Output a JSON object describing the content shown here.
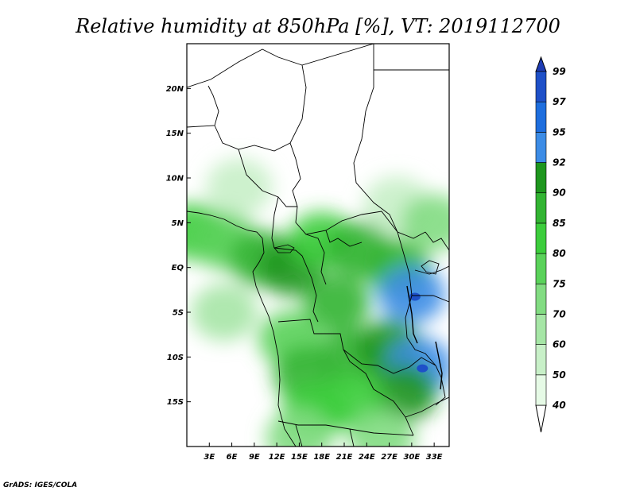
{
  "chart_data": {
    "type": "heatmap",
    "title": "Relative humidity at 850hPa [%], VT: 2019112700",
    "credit": "GrADS: IGES/COLA",
    "x_ticks": [
      "3E",
      "6E",
      "9E",
      "12E",
      "15E",
      "18E",
      "21E",
      "24E",
      "27E",
      "30E",
      "33E"
    ],
    "x_tick_values": [
      3,
      6,
      9,
      12,
      15,
      18,
      21,
      24,
      27,
      30,
      33
    ],
    "y_ticks": [
      "20N",
      "15N",
      "10N",
      "5N",
      "EQ",
      "5S",
      "10S",
      "15S"
    ],
    "y_tick_values": [
      20,
      15,
      10,
      5,
      0,
      -5,
      -10,
      -15
    ],
    "xlim": [
      0,
      35
    ],
    "ylim": [
      -20,
      25
    ],
    "colorbar": {
      "levels": [
        "40",
        "50",
        "60",
        "70",
        "75",
        "80",
        "85",
        "90",
        "92",
        "95",
        "97",
        "99"
      ],
      "colors": [
        "#ffffff",
        "#e6fae6",
        "#c8f0c8",
        "#a6e6a6",
        "#82dc82",
        "#5ad25a",
        "#3ccd3c",
        "#32b432",
        "#1e961e",
        "#3c8ce6",
        "#1e6ede",
        "#1e50c8",
        "#1e3cb4"
      ]
    },
    "fields": [
      {
        "lon": 1,
        "lat": 4,
        "value": 82
      },
      {
        "lon": 5,
        "lat": 3,
        "value": 78
      },
      {
        "lon": 10,
        "lat": 1,
        "value": 85
      },
      {
        "lon": 14,
        "lat": 0,
        "value": 90
      },
      {
        "lon": 18,
        "lat": 3,
        "value": 82
      },
      {
        "lon": 23,
        "lat": 2,
        "value": 85
      },
      {
        "lon": 28,
        "lat": 0,
        "value": 88
      },
      {
        "lon": 30,
        "lat": -3,
        "value": 92
      },
      {
        "lon": 20,
        "lat": -4,
        "value": 85
      },
      {
        "lon": 14,
        "lat": -8,
        "value": 78
      },
      {
        "lon": 16,
        "lat": -12,
        "value": 88
      },
      {
        "lon": 22,
        "lat": -10,
        "value": 85
      },
      {
        "lon": 27,
        "lat": -9,
        "value": 90
      },
      {
        "lon": 31,
        "lat": -11,
        "value": 93
      },
      {
        "lon": 29,
        "lat": -14,
        "value": 90
      },
      {
        "lon": 22,
        "lat": -15,
        "value": 82
      },
      {
        "lon": 17,
        "lat": -16,
        "value": 84
      },
      {
        "lon": 5,
        "lat": -5,
        "value": 65
      },
      {
        "lon": 28,
        "lat": 7,
        "value": 55
      },
      {
        "lon": 33,
        "lat": 5,
        "value": 72
      },
      {
        "lon": 7,
        "lat": 9,
        "value": 50
      },
      {
        "lon": 26,
        "lat": -19,
        "value": 70
      },
      {
        "lon": 15,
        "lat": -19,
        "value": 72
      }
    ],
    "grid": false
  }
}
